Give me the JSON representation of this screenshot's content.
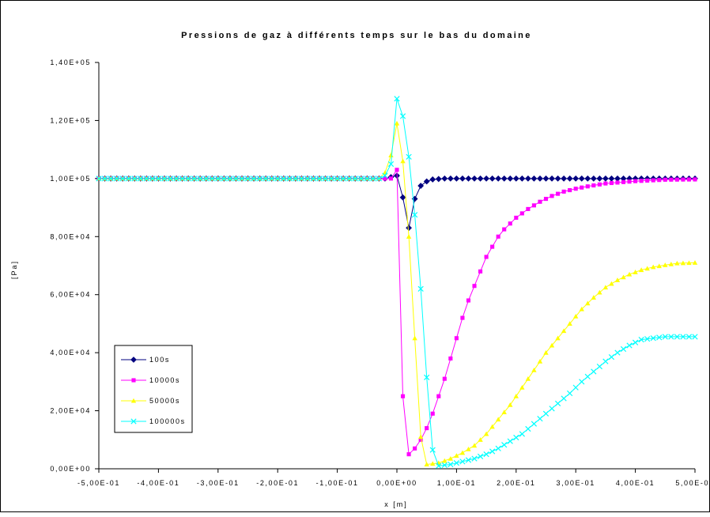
{
  "chart_data": {
    "type": "line",
    "title": "Pressions de gaz à différents temps sur le bas du domaine",
    "xlabel": "x [m]",
    "ylabel": "[Pa]",
    "xlim": [
      -0.5,
      0.5
    ],
    "ylim": [
      0,
      140000
    ],
    "xticks": [
      "-5,00E-01",
      "-4,00E-01",
      "-3,00E-01",
      "-2,00E-01",
      "-1,00E-01",
      "0,00E+00",
      "1,00E-01",
      "2,00E-01",
      "3,00E-01",
      "4,00E-01",
      "5,00E-01"
    ],
    "yticks": [
      "0,00E+00",
      "2,00E+04",
      "4,00E+04",
      "6,00E+04",
      "8,00E+04",
      "1,00E+05",
      "1,20E+05",
      "1,40E+05"
    ],
    "grid": false,
    "legend_position": "bottom-left",
    "series": [
      {
        "name": "100s",
        "color": "#000080",
        "marker": "diamond",
        "x": [
          -0.5,
          -0.02,
          -0.01,
          0,
          0.01,
          0.02,
          0.03,
          0.04,
          0.05,
          0.06,
          0.08,
          0.1,
          0.2,
          0.3,
          0.4,
          0.5
        ],
        "y": [
          100000,
          100000,
          100500,
          101000,
          93500,
          83000,
          93000,
          97500,
          99000,
          99700,
          100000,
          100000,
          100000,
          100000,
          100000,
          100000
        ]
      },
      {
        "name": "10000s",
        "color": "#ff00ff",
        "marker": "square",
        "x": [
          -0.5,
          -0.02,
          -0.01,
          0,
          0.01,
          0.02,
          0.03,
          0.04,
          0.05,
          0.06,
          0.07,
          0.08,
          0.09,
          0.1,
          0.11,
          0.12,
          0.13,
          0.14,
          0.15,
          0.16,
          0.17,
          0.18,
          0.19,
          0.2,
          0.22,
          0.24,
          0.26,
          0.28,
          0.3,
          0.32,
          0.35,
          0.4,
          0.45,
          0.5
        ],
        "y": [
          100000,
          100000,
          100000,
          103000,
          25000,
          5000,
          7000,
          10000,
          14000,
          19000,
          25000,
          31000,
          38000,
          45000,
          52000,
          58000,
          63000,
          68000,
          73000,
          76500,
          80000,
          82500,
          84500,
          86500,
          89500,
          92000,
          94000,
          95500,
          96500,
          97300,
          98300,
          99100,
          99600,
          99700
        ]
      },
      {
        "name": "50000s",
        "color": "#ffff00",
        "marker": "triangle",
        "x": [
          -0.5,
          -0.03,
          -0.02,
          -0.01,
          0,
          0.01,
          0.02,
          0.03,
          0.04,
          0.05,
          0.07,
          0.09,
          0.11,
          0.13,
          0.15,
          0.17,
          0.19,
          0.21,
          0.23,
          0.25,
          0.27,
          0.29,
          0.31,
          0.33,
          0.35,
          0.37,
          0.39,
          0.41,
          0.43,
          0.45,
          0.47,
          0.5
        ],
        "y": [
          100000,
          100000,
          102000,
          108000,
          119000,
          106000,
          80000,
          45000,
          11000,
          1500,
          2000,
          3500,
          5500,
          8000,
          12000,
          17000,
          22000,
          28000,
          34000,
          40000,
          45000,
          50000,
          55000,
          59000,
          62500,
          65000,
          67000,
          68500,
          69500,
          70200,
          70800,
          71000
        ]
      },
      {
        "name": "100000s",
        "color": "#00ffff",
        "marker": "x",
        "x": [
          -0.5,
          -0.03,
          -0.02,
          -0.01,
          0,
          0.01,
          0.02,
          0.03,
          0.04,
          0.05,
          0.06,
          0.07,
          0.09,
          0.11,
          0.13,
          0.15,
          0.17,
          0.19,
          0.21,
          0.23,
          0.25,
          0.27,
          0.29,
          0.31,
          0.33,
          0.35,
          0.37,
          0.39,
          0.41,
          0.43,
          0.45,
          0.47,
          0.5
        ],
        "y": [
          100000,
          100000,
          101000,
          105000,
          127500,
          121500,
          107500,
          87500,
          62000,
          31500,
          6500,
          1000,
          1500,
          2500,
          3500,
          5000,
          7000,
          9500,
          12000,
          15500,
          19000,
          22500,
          26000,
          30000,
          33500,
          37000,
          40000,
          42500,
          44500,
          45000,
          45500,
          45500,
          45500
        ]
      }
    ]
  }
}
